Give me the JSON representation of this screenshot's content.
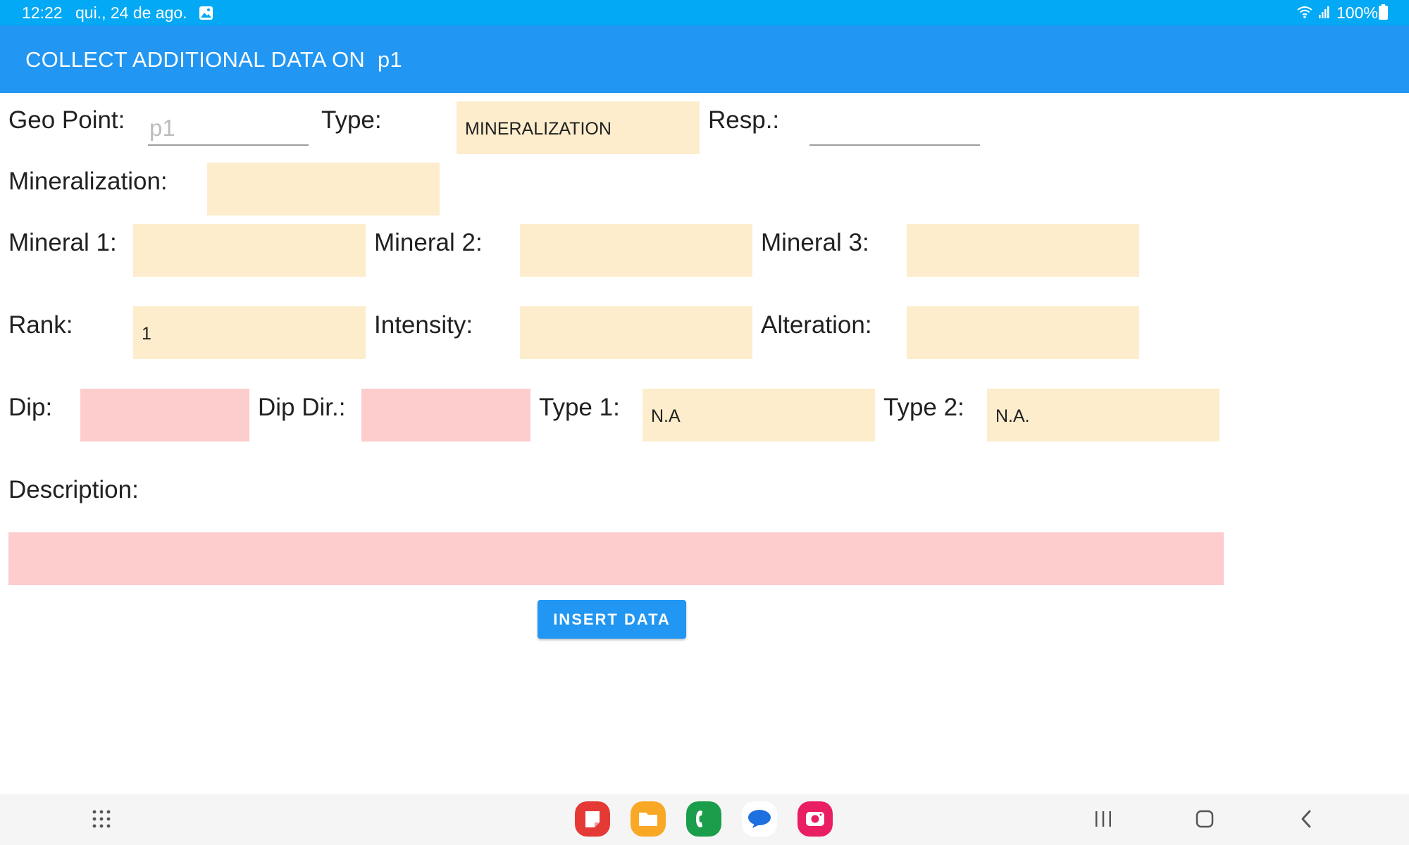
{
  "status_bar": {
    "time": "12:22",
    "date": "qui., 24 de ago.",
    "battery": "100%",
    "icons": [
      "photo-icon",
      "wifi-icon",
      "signal-icon",
      "battery-icon"
    ]
  },
  "app_bar": {
    "title": "COLLECT ADDITIONAL DATA ON  p1"
  },
  "form": {
    "geo_point": {
      "label": "Geo Point:",
      "placeholder": "p1",
      "value": ""
    },
    "type": {
      "label": "Type:",
      "value": "MINERALIZATION"
    },
    "resp": {
      "label": "Resp.:",
      "value": ""
    },
    "mineralization": {
      "label": "Mineralization:",
      "value": ""
    },
    "mineral1": {
      "label": "Mineral 1:",
      "value": ""
    },
    "mineral2": {
      "label": "Mineral 2:",
      "value": ""
    },
    "mineral3": {
      "label": "Mineral 3:",
      "value": ""
    },
    "rank": {
      "label": "Rank:",
      "value": "1"
    },
    "intensity": {
      "label": "Intensity:",
      "value": ""
    },
    "alteration": {
      "label": "Alteration:",
      "value": ""
    },
    "dip": {
      "label": "Dip:",
      "value": ""
    },
    "dip_dir": {
      "label": "Dip Dir.:",
      "value": ""
    },
    "type1": {
      "label": "Type 1:",
      "value": "N.A"
    },
    "type2": {
      "label": "Type 2:",
      "value": "N.A."
    },
    "description": {
      "label": "Description:",
      "value": ""
    },
    "insert_button": "INSERT DATA"
  },
  "colors": {
    "status_bar": "#03a9f4",
    "app_bar": "#2196f3",
    "field_yellow": "#fdedcc",
    "field_pink": "#fdcccc",
    "button": "#2196f3"
  },
  "nav_bar": {
    "dock": [
      "notes-app-icon",
      "files-app-icon",
      "phone-app-icon",
      "messages-app-icon",
      "camera-app-icon"
    ],
    "buttons": [
      "apps-grid-icon",
      "recents-icon",
      "home-icon",
      "back-icon"
    ]
  }
}
